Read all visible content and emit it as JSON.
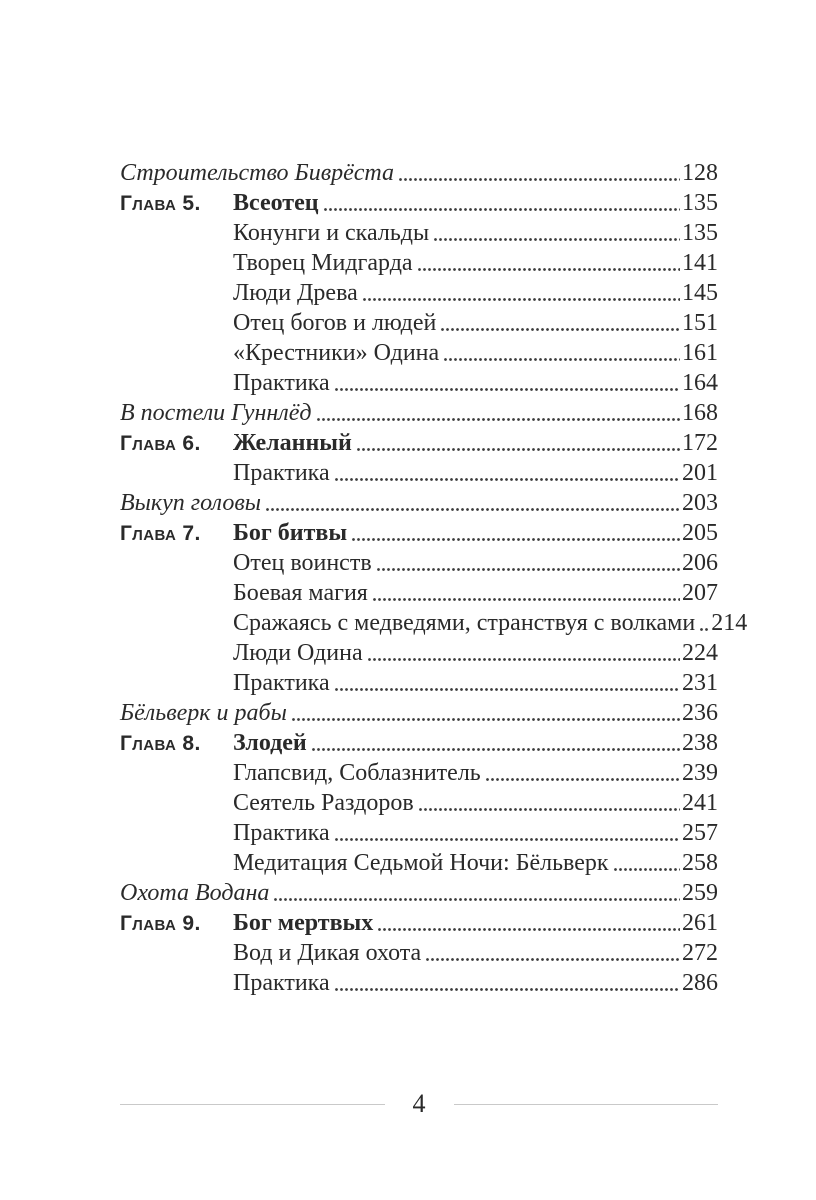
{
  "colors": {
    "text": "#2a2a2a",
    "leader_dot": "#3c3c3c",
    "footer_rule": "#c9c9c9",
    "background": "#ffffff"
  },
  "toc": {
    "entries": [
      {
        "type": "section",
        "title": "Строительство Биврёста",
        "page": "128"
      },
      {
        "type": "chapter",
        "label": "Глава 5.",
        "title": "Всеотец",
        "page": "135"
      },
      {
        "type": "sub",
        "title": "Конунги и скальды",
        "page": "135"
      },
      {
        "type": "sub",
        "title": "Творец Мидгарда",
        "page": "141"
      },
      {
        "type": "sub",
        "title": "Люди Древа",
        "page": "145"
      },
      {
        "type": "sub",
        "title": "Отец богов и людей",
        "page": "151"
      },
      {
        "type": "sub",
        "title": "«Крестники» Одина",
        "page": "161"
      },
      {
        "type": "sub",
        "title": "Практика",
        "page": "164"
      },
      {
        "type": "section",
        "title": "В постели Гуннлёд",
        "page": "168"
      },
      {
        "type": "chapter",
        "label": "Глава 6.",
        "title": "Желанный",
        "page": "172"
      },
      {
        "type": "sub",
        "title": "Практика",
        "page": "201"
      },
      {
        "type": "section",
        "title": "Выкуп головы",
        "page": "203"
      },
      {
        "type": "chapter",
        "label": "Глава 7.",
        "title": "Бог битвы",
        "page": "205"
      },
      {
        "type": "sub",
        "title": "Отец воинств",
        "page": "206"
      },
      {
        "type": "sub",
        "title": "Боевая магия",
        "page": "207"
      },
      {
        "type": "sub",
        "title": "Сражаясь с медведями, странствуя с волками",
        "page": "214"
      },
      {
        "type": "sub",
        "title": "Люди Одина",
        "page": "224"
      },
      {
        "type": "sub",
        "title": "Практика",
        "page": "231"
      },
      {
        "type": "section",
        "title": "Бёльверк и рабы",
        "page": "236"
      },
      {
        "type": "chapter",
        "label": "Глава 8.",
        "title": "Злодей",
        "page": "238"
      },
      {
        "type": "sub",
        "title": "Глапсвид, Соблазнитель",
        "page": "239"
      },
      {
        "type": "sub",
        "title": "Сеятель Раздоров",
        "page": "241"
      },
      {
        "type": "sub",
        "title": "Практика",
        "page": "257"
      },
      {
        "type": "sub",
        "title": "Медитация Седьмой Ночи: Бёльверк",
        "page": "258"
      },
      {
        "type": "section",
        "title": "Охота Водана",
        "page": "259"
      },
      {
        "type": "chapter",
        "label": "Глава 9.",
        "title": "Бог мертвых",
        "page": "261"
      },
      {
        "type": "sub",
        "title": "Вод и Дикая охота",
        "page": "272"
      },
      {
        "type": "sub",
        "title": "Практика",
        "page": "286"
      }
    ]
  },
  "footer": {
    "page_number": "4"
  }
}
